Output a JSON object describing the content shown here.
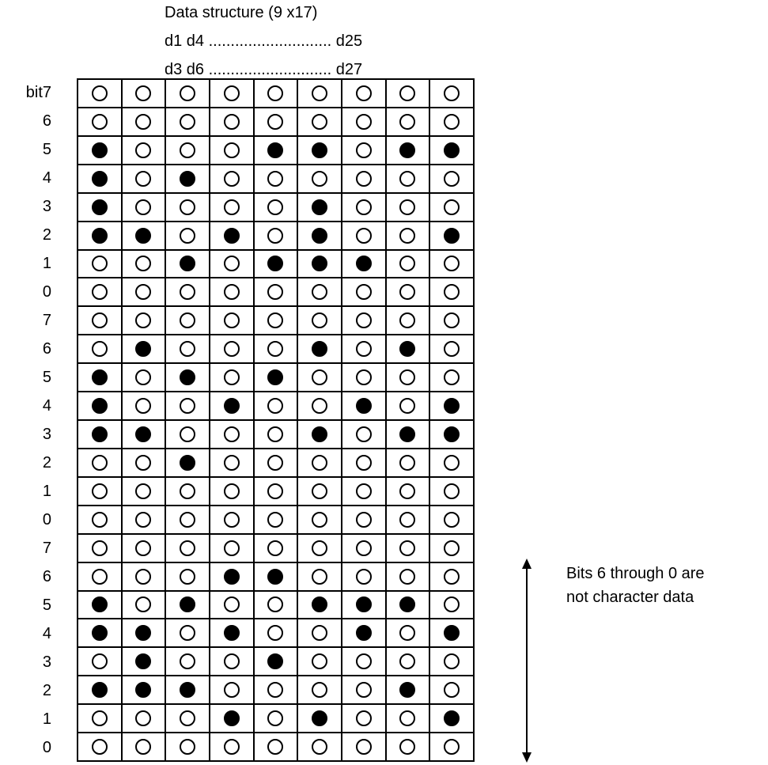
{
  "header": {
    "title": "Data structure (9 x17)",
    "first_line": "d1 d4 ............................ d25",
    "second_line": "d3 d6 ............................ d27"
  },
  "row_labels": [
    "bit7",
    "6",
    "5",
    "4",
    "3",
    "2",
    "1",
    "0",
    "7",
    "6",
    "5",
    "4",
    "3",
    "2",
    "1",
    "0",
    "7",
    "6",
    "5",
    "4",
    "3",
    "2",
    "1",
    "0"
  ],
  "bit_rows": [
    [
      0,
      0,
      0,
      0,
      0,
      0,
      0,
      0,
      0
    ],
    [
      0,
      0,
      0,
      0,
      0,
      0,
      0,
      0,
      0
    ],
    [
      1,
      0,
      0,
      0,
      1,
      1,
      0,
      1,
      1
    ],
    [
      1,
      0,
      1,
      0,
      0,
      0,
      0,
      0,
      0
    ],
    [
      1,
      0,
      0,
      0,
      0,
      1,
      0,
      0,
      0
    ],
    [
      1,
      1,
      0,
      1,
      0,
      1,
      0,
      0,
      1
    ],
    [
      0,
      0,
      1,
      0,
      1,
      1,
      1,
      0,
      0
    ],
    [
      0,
      0,
      0,
      0,
      0,
      0,
      0,
      0,
      0
    ],
    [
      0,
      0,
      0,
      0,
      0,
      0,
      0,
      0,
      0
    ],
    [
      0,
      1,
      0,
      0,
      0,
      1,
      0,
      1,
      0
    ],
    [
      1,
      0,
      1,
      0,
      1,
      0,
      0,
      0,
      0
    ],
    [
      1,
      0,
      0,
      1,
      0,
      0,
      1,
      0,
      1
    ],
    [
      1,
      1,
      0,
      0,
      0,
      1,
      0,
      1,
      1
    ],
    [
      0,
      0,
      1,
      0,
      0,
      0,
      0,
      0,
      0
    ],
    [
      0,
      0,
      0,
      0,
      0,
      0,
      0,
      0,
      0
    ],
    [
      0,
      0,
      0,
      0,
      0,
      0,
      0,
      0,
      0
    ],
    [
      0,
      0,
      0,
      0,
      0,
      0,
      0,
      0,
      0
    ],
    [
      0,
      0,
      0,
      1,
      1,
      0,
      0,
      0,
      0
    ],
    [
      1,
      0,
      1,
      0,
      0,
      1,
      1,
      1,
      0
    ],
    [
      1,
      1,
      0,
      1,
      0,
      0,
      1,
      0,
      1
    ],
    [
      0,
      1,
      0,
      0,
      1,
      0,
      0,
      0,
      0
    ],
    [
      1,
      1,
      1,
      0,
      0,
      0,
      0,
      1,
      0
    ],
    [
      0,
      0,
      0,
      1,
      0,
      1,
      0,
      0,
      1
    ],
    [
      0,
      0,
      0,
      0,
      0,
      0,
      0,
      0,
      0
    ]
  ],
  "note": {
    "line1": "Bits 6 through 0 are",
    "line2": "not character data"
  }
}
